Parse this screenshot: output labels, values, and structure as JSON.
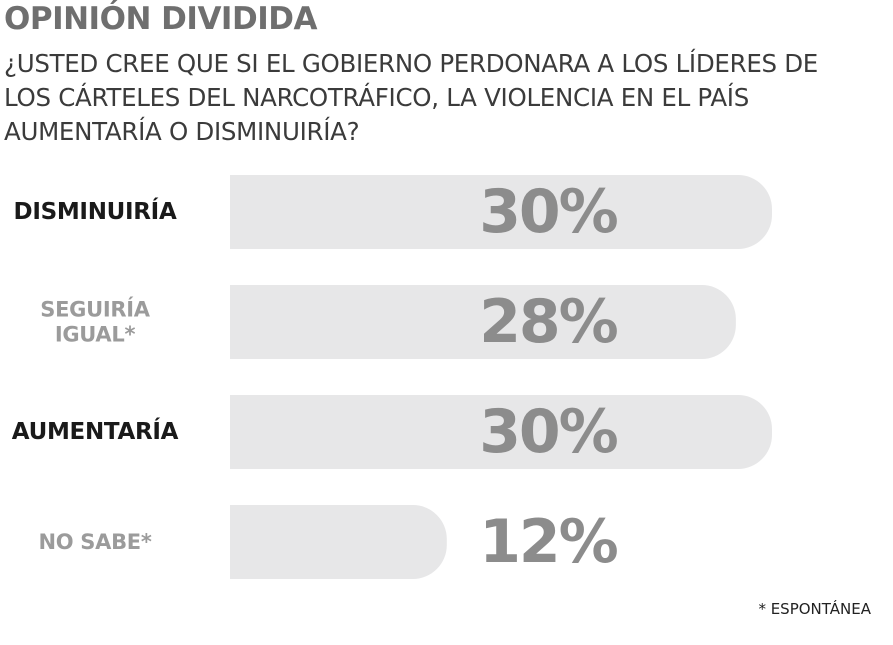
{
  "title": "OPINIÓN DIVIDIDA",
  "question": "¿USTED CREE QUE SI EL GOBIERNO PERDONARA A LOS LÍDERES DE LOS CÁRTELES DEL NARCOTRÁFICO, LA VIOLENCIA EN EL PAÍS AUMENTARÍA O DISMINUIRÍA?",
  "footnote": "* ESPONTÁNEA",
  "colors": {
    "bar": "#e7e7e8",
    "value_text": "#8c8c8c",
    "label_dark": "#1a1a1a",
    "label_light": "#9b9b9b"
  },
  "chart_data": {
    "type": "bar",
    "orientation": "horizontal",
    "title": "OPINIÓN DIVIDIDA",
    "categories": [
      "DISMINUIRÍA",
      "SEGUIRÍA IGUAL*",
      "AUMENTARÍA",
      "NO SABE*"
    ],
    "category_lines": [
      [
        "DISMINUIRÍA"
      ],
      [
        "SEGUIRÍA",
        "IGUAL*"
      ],
      [
        "AUMENTARÍA"
      ],
      [
        "NO SABE*"
      ]
    ],
    "label_tone": [
      "dark",
      "light",
      "dark",
      "light"
    ],
    "values": [
      30,
      28,
      30,
      12
    ],
    "value_labels": [
      "30%",
      "28%",
      "30%",
      "12%"
    ],
    "unit": "%",
    "xlim": [
      0,
      30
    ]
  }
}
